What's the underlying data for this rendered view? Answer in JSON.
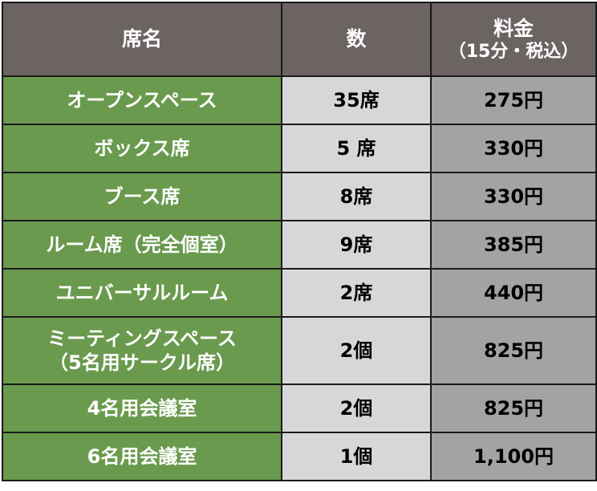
{
  "header": {
    "seat_name": "席名",
    "count": "数",
    "price_title": "料金",
    "price_sub": "（15分・税込）"
  },
  "rows": [
    {
      "name": [
        "オープンスペース"
      ],
      "count": "35席",
      "price": "275円"
    },
    {
      "name": [
        "ボックス席"
      ],
      "count": "5 席",
      "price": "330円"
    },
    {
      "name": [
        "ブース席"
      ],
      "count": "8席",
      "price": "330円"
    },
    {
      "name": [
        "ルーム席（完全個室）"
      ],
      "count": "9席",
      "price": "385円"
    },
    {
      "name": [
        "ユニバーサルルーム"
      ],
      "count": "2席",
      "price": "440円"
    },
    {
      "name": [
        "ミーティングスペース",
        "（5名用サークル席）"
      ],
      "count": "2個",
      "price": "825円"
    },
    {
      "name": [
        "4名用会議室"
      ],
      "count": "2個",
      "price": "825円"
    },
    {
      "name": [
        "6名用会議室"
      ],
      "count": "1個",
      "price": "1,100円"
    }
  ],
  "colors": {
    "header_bg": "#6b6462",
    "name_bg": "#6a9a4e",
    "count_bg": "#d8d7d7",
    "price_bg": "#a3a3a3"
  }
}
